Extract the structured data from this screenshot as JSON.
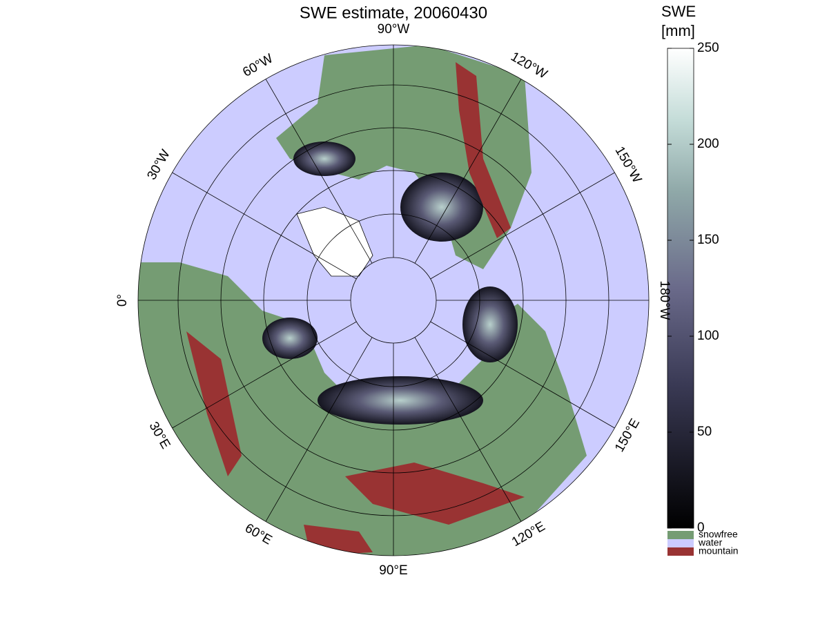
{
  "title": "SWE estimate, 20060430",
  "colorbar": {
    "label": [
      "SWE",
      "[mm]"
    ],
    "ylim": [
      0,
      250
    ],
    "yticks": [
      0,
      50,
      100,
      150,
      200,
      250
    ]
  },
  "legend": [
    {
      "name": "snowfree",
      "color": "#759c73"
    },
    {
      "name": "water",
      "color": "#ccccff"
    },
    {
      "name": "mountain",
      "color": "#993333"
    }
  ],
  "meridian_labels": [
    {
      "lon": -90,
      "label": "90°W"
    },
    {
      "lon": -60,
      "label": "60°W"
    },
    {
      "lon": -30,
      "label": "30°W"
    },
    {
      "lon": 0,
      "label": "0°"
    },
    {
      "lon": 30,
      "label": "30°E"
    },
    {
      "lon": 60,
      "label": "60°E"
    },
    {
      "lon": 90,
      "label": "90°E"
    },
    {
      "lon": 120,
      "label": "120°E"
    },
    {
      "lon": 150,
      "label": "150°E"
    },
    {
      "lon": 180,
      "label": "180°W"
    },
    {
      "lon": -150,
      "label": "150°W"
    },
    {
      "lon": -120,
      "label": "120°W"
    }
  ]
}
